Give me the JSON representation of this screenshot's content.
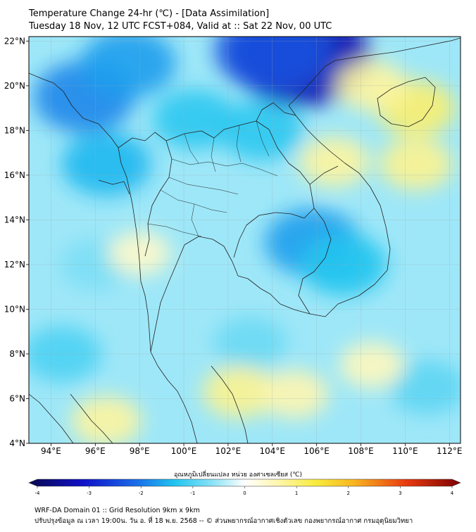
{
  "title": "Temperature Change 24-hr (℃) - [Data Assimilation]",
  "subtitle": "Tuesday 18 Nov, 12 UTC FCST+084, Valid at :: Sat 22 Nov, 00 UTC",
  "map": {
    "lon_range": [
      93,
      112.5
    ],
    "lat_range": [
      4,
      22.2
    ],
    "lat_ticks": [
      {
        "value": 22,
        "label": "22°N"
      },
      {
        "value": 20,
        "label": "20°N"
      },
      {
        "value": 18,
        "label": "18°N"
      },
      {
        "value": 16,
        "label": "16°N"
      },
      {
        "value": 14,
        "label": "14°N"
      },
      {
        "value": 12,
        "label": "12°N"
      },
      {
        "value": 10,
        "label": "10°N"
      },
      {
        "value": 8,
        "label": "8°N"
      },
      {
        "value": 6,
        "label": "6°N"
      },
      {
        "value": 4,
        "label": "4°N"
      }
    ],
    "lon_ticks": [
      {
        "value": 94,
        "label": "94°E"
      },
      {
        "value": 96,
        "label": "96°E"
      },
      {
        "value": 98,
        "label": "98°E"
      },
      {
        "value": 100,
        "label": "100°E"
      },
      {
        "value": 102,
        "label": "102°E"
      },
      {
        "value": 104,
        "label": "104°E"
      },
      {
        "value": 106,
        "label": "106°E"
      },
      {
        "value": 108,
        "label": "108°E"
      },
      {
        "value": 110,
        "label": "110°E"
      },
      {
        "value": 112,
        "label": "112°E"
      }
    ],
    "field_regions": [
      {
        "name": "cold-core-north-vietnam",
        "lon": 105.3,
        "lat": 21.3,
        "value": -3.2
      },
      {
        "name": "cold-south-china",
        "lon": 104.0,
        "lat": 21.6,
        "value": -2.3
      },
      {
        "name": "cold-myanmar-west",
        "lon": 95.5,
        "lat": 19.5,
        "value": -1.8
      },
      {
        "name": "cold-myanmar-north",
        "lon": 97.5,
        "lat": 21.0,
        "value": -1.6
      },
      {
        "name": "cold-myanmar-central",
        "lon": 96.5,
        "lat": 16.5,
        "value": -1.4
      },
      {
        "name": "cold-thailand-north",
        "lon": 100.5,
        "lat": 18.5,
        "value": -1.2
      },
      {
        "name": "cold-laos",
        "lon": 103.5,
        "lat": 18.0,
        "value": -1.2
      },
      {
        "name": "cold-cambodia",
        "lon": 105.8,
        "lat": 13.0,
        "value": -1.6
      },
      {
        "name": "cold-south-vietnam",
        "lon": 107.2,
        "lat": 12.0,
        "value": -1.3
      },
      {
        "name": "cold-gulf-of-thailand",
        "lon": 103.0,
        "lat": 8.5,
        "value": -0.8
      },
      {
        "name": "cold-west-andaman",
        "lon": 94.5,
        "lat": 8.0,
        "value": -1.0
      },
      {
        "name": "cold-east-sea",
        "lon": 111.0,
        "lat": 6.5,
        "value": -0.9
      },
      {
        "name": "cold-andaman-sea",
        "lon": 96.0,
        "lat": 12.0,
        "value": -0.7
      },
      {
        "name": "warm-hainan",
        "lon": 110.5,
        "lat": 19.0,
        "value": 1.0
      },
      {
        "name": "warm-gulf-of-tonkin",
        "lon": 108.5,
        "lat": 20.0,
        "value": 0.7
      },
      {
        "name": "warm-central-vietnam",
        "lon": 106.8,
        "lat": 16.6,
        "value": 0.7
      },
      {
        "name": "warm-south-china-sea",
        "lon": 110.5,
        "lat": 16.5,
        "value": 0.8
      },
      {
        "name": "warm-malay-peninsula",
        "lon": 102.5,
        "lat": 6.3,
        "value": 0.8
      },
      {
        "name": "warm-gulf-south",
        "lon": 105.0,
        "lat": 6.2,
        "value": 0.6
      },
      {
        "name": "warm-sumatra",
        "lon": 96.5,
        "lat": 5.0,
        "value": 0.7
      },
      {
        "name": "warm-andaman-coast",
        "lon": 98.0,
        "lat": 12.5,
        "value": 0.4
      },
      {
        "name": "warm-south-sea-east",
        "lon": 108.5,
        "lat": 7.5,
        "value": 0.5
      }
    ]
  },
  "colorbar": {
    "label": "อุณหภูมิเปลี่ยนแปลง หน่วย องศาเซลเซียส (℃)",
    "min": -4,
    "max": 4,
    "ticks": [
      {
        "value": -4,
        "label": "-4"
      },
      {
        "value": -3,
        "label": "-3"
      },
      {
        "value": -2,
        "label": "-2"
      },
      {
        "value": -1,
        "label": "-1"
      },
      {
        "value": 0,
        "label": "0"
      },
      {
        "value": 1,
        "label": "1"
      },
      {
        "value": 2,
        "label": "2"
      },
      {
        "value": 3,
        "label": "3"
      },
      {
        "value": 4,
        "label": "4"
      }
    ],
    "stops": [
      {
        "value": -4,
        "color": "#08084f"
      },
      {
        "value": -3,
        "color": "#1010c8"
      },
      {
        "value": -2,
        "color": "#1a6ee8"
      },
      {
        "value": -1.3,
        "color": "#20c4f0"
      },
      {
        "value": -0.6,
        "color": "#8ae2f6"
      },
      {
        "value": 0,
        "color": "#ffffff"
      },
      {
        "value": 0.6,
        "color": "#fff6b0"
      },
      {
        "value": 1.3,
        "color": "#f8ec40"
      },
      {
        "value": 2,
        "color": "#f8b820"
      },
      {
        "value": 3,
        "color": "#e83a10"
      },
      {
        "value": 4,
        "color": "#7a0000"
      }
    ]
  },
  "footer": {
    "line1": "WRF-DA Domain 01 :: Grid Resolution 9km x 9km",
    "line2": "ปรับปรุงข้อมูล ณ เวลา 19:00น. วัน อ. ที่ 18 พ.ย. 2568 -- © ส่วนพยากรณ์อากาศเชิงตัวเลข กองพยากรณ์อากาศ กรมอุตุนิยมวิทยา"
  }
}
